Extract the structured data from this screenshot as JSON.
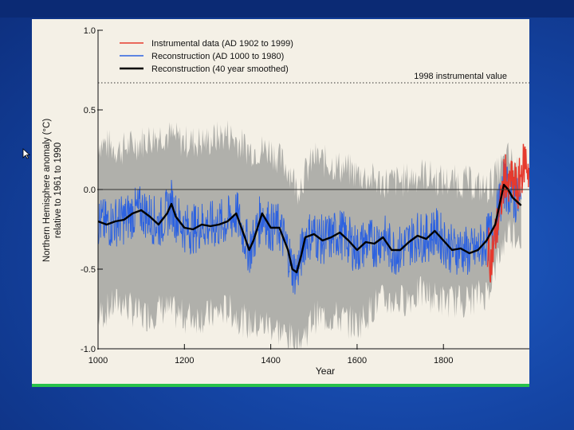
{
  "colors": {
    "instrumental": "#e53a2e",
    "reconstruction": "#2d62e0",
    "smoothed": "#000000",
    "uncertainty": "#a9a8a4",
    "background": "#f4f0e6",
    "accent_rule": "#28c24a"
  },
  "icons": {
    "pointer": "mouse-pointer-icon"
  },
  "chart_data": {
    "type": "line",
    "title": "",
    "xlabel": "Year",
    "ylabel": "Northern Hemisphere anomaly (°C)",
    "ylabel_line2": "relative to 1961 to 1990",
    "xlim": [
      1000,
      1999
    ],
    "ylim": [
      -1.0,
      1.0
    ],
    "x_ticks": [
      1000,
      1200,
      1400,
      1600,
      1800
    ],
    "x_tick_labels": [
      "1000",
      "1200",
      "1400",
      "1600",
      "1800"
    ],
    "y_ticks": [
      -1.0,
      -0.5,
      0.0,
      0.5,
      1.0
    ],
    "y_tick_labels": [
      "-1.0",
      "-0.5",
      "0.0",
      "0.5",
      "1.0"
    ],
    "grid": false,
    "legend_position": "top-left",
    "reference_lines": [
      {
        "y": 0.0,
        "style": "solid"
      },
      {
        "y": 0.67,
        "style": "dotted",
        "label": "1998 instrumental value"
      }
    ],
    "legend": [
      {
        "label": "Instrumental data (AD 1902 to 1999)",
        "color": "#e53a2e"
      },
      {
        "label": "Reconstruction (AD 1000 to 1980)",
        "color": "#2d62e0"
      },
      {
        "label": "Reconstruction (40 year smoothed)",
        "color": "#000000"
      }
    ],
    "series": [
      {
        "name": "Reconstruction (40 year smoothed)",
        "x": [
          1000,
          1020,
          1040,
          1060,
          1080,
          1100,
          1120,
          1140,
          1160,
          1170,
          1180,
          1200,
          1220,
          1240,
          1260,
          1280,
          1300,
          1320,
          1340,
          1350,
          1360,
          1380,
          1400,
          1420,
          1440,
          1450,
          1460,
          1470,
          1480,
          1500,
          1520,
          1540,
          1560,
          1580,
          1600,
          1620,
          1640,
          1660,
          1680,
          1700,
          1720,
          1740,
          1760,
          1780,
          1800,
          1820,
          1840,
          1860,
          1880,
          1900,
          1920,
          1940,
          1950,
          1960,
          1980
        ],
        "y": [
          -0.2,
          -0.22,
          -0.2,
          -0.19,
          -0.15,
          -0.13,
          -0.17,
          -0.22,
          -0.15,
          -0.09,
          -0.17,
          -0.24,
          -0.25,
          -0.22,
          -0.23,
          -0.22,
          -0.2,
          -0.15,
          -0.3,
          -0.38,
          -0.32,
          -0.15,
          -0.24,
          -0.24,
          -0.38,
          -0.5,
          -0.52,
          -0.42,
          -0.3,
          -0.28,
          -0.32,
          -0.3,
          -0.27,
          -0.32,
          -0.38,
          -0.33,
          -0.34,
          -0.3,
          -0.38,
          -0.38,
          -0.33,
          -0.29,
          -0.31,
          -0.26,
          -0.32,
          -0.38,
          -0.37,
          -0.4,
          -0.38,
          -0.32,
          -0.22,
          0.03,
          0.0,
          -0.05,
          -0.1
        ]
      },
      {
        "name": "Instrumental data (AD 1902 to 1999)",
        "x": [
          1902,
          1910,
          1920,
          1930,
          1940,
          1945,
          1950,
          1955,
          1960,
          1965,
          1970,
          1980,
          1990,
          1999
        ],
        "y": [
          -0.35,
          -0.45,
          -0.3,
          -0.15,
          0.05,
          0.12,
          -0.05,
          0.08,
          0.02,
          0.06,
          -0.03,
          0.1,
          0.2,
          0.1
        ]
      }
    ],
    "uncertainty_band": {
      "x": [
        1000,
        1050,
        1100,
        1150,
        1200,
        1250,
        1300,
        1350,
        1400,
        1450,
        1460,
        1500,
        1550,
        1600,
        1650,
        1700,
        1750,
        1800,
        1850,
        1900,
        1950,
        1980
      ],
      "upper": [
        0.3,
        0.25,
        0.3,
        0.35,
        0.3,
        0.3,
        0.35,
        0.25,
        0.25,
        0.1,
        0.0,
        0.2,
        0.15,
        0.1,
        0.05,
        0.05,
        0.1,
        0.05,
        0.05,
        0.0,
        0.2,
        0.1
      ],
      "lower": [
        -0.8,
        -0.7,
        -0.8,
        -0.75,
        -0.8,
        -0.8,
        -0.75,
        -0.85,
        -0.85,
        -0.95,
        -1.0,
        -0.8,
        -0.8,
        -0.85,
        -0.7,
        -0.7,
        -0.65,
        -0.7,
        -0.7,
        -0.65,
        -0.25,
        -0.3
      ]
    }
  }
}
